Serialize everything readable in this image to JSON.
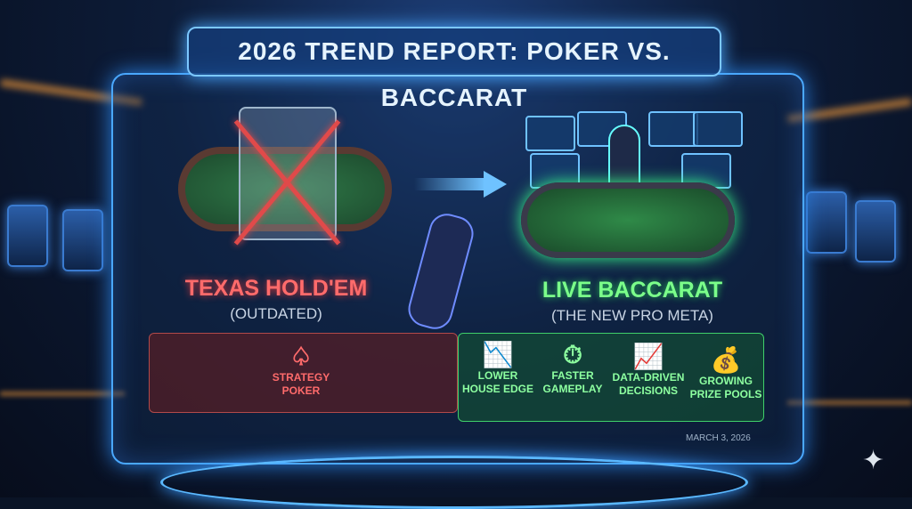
{
  "title": "2026 TREND REPORT: POKER VS. BACCARAT",
  "left": {
    "heading": "TEXAS HOLD'EM",
    "subheading": "(OUTDATED)",
    "feature": {
      "icon": "spade-icon",
      "label_line1": "STRATEGY",
      "label_line2": "POKER"
    }
  },
  "right": {
    "heading": "LIVE BACCARAT",
    "subheading": "(THE NEW PRO META)",
    "features": [
      {
        "icon": "chart-down-icon",
        "label_line1": "LOWER",
        "label_line2": "HOUSE EDGE"
      },
      {
        "icon": "stopwatch-icon",
        "label_line1": "FASTER",
        "label_line2": "GAMEPLAY"
      },
      {
        "icon": "chart-up-icon",
        "label_line1": "DATA-DRIVEN",
        "label_line2": "DECISIONS"
      },
      {
        "icon": "money-hand-icon",
        "label_line1": "GROWING",
        "label_line2": "PRIZE POOLS"
      }
    ]
  },
  "date": "MARCH 3, 2026",
  "colors": {
    "outdated": "#ff6b6b",
    "new": "#7bff8a",
    "frame": "#4aa8ff"
  }
}
